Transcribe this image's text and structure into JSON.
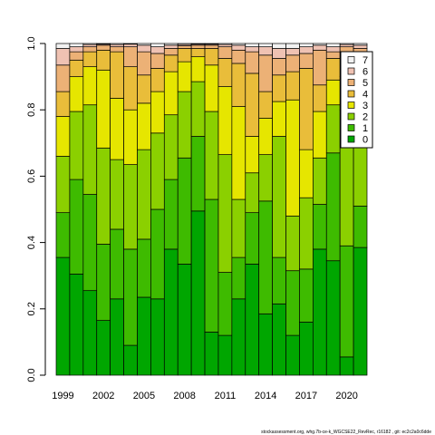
{
  "chart_data": {
    "type": "stacked_bar",
    "x": [
      1999,
      2000,
      2001,
      2002,
      2003,
      2004,
      2005,
      2006,
      2007,
      2008,
      2009,
      2010,
      2011,
      2012,
      2013,
      2014,
      2015,
      2016,
      2017,
      2018,
      2019,
      2020,
      2021
    ],
    "xticks": [
      1999,
      2002,
      2005,
      2008,
      2011,
      2014,
      2017,
      2020
    ],
    "ylim": [
      0,
      1
    ],
    "yticks": [
      {
        "value": 0,
        "label": "0.0"
      },
      0.2,
      0.4,
      0.6,
      0.8,
      {
        "value": 1,
        "label": "1.0"
      }
    ],
    "legend_position": "topright",
    "series": [
      {
        "name": "0",
        "color": "#00A600",
        "values": [
          0.355,
          0.305,
          0.255,
          0.165,
          0.23,
          0.09,
          0.235,
          0.23,
          0.38,
          0.335,
          0.495,
          0.13,
          0.12,
          0.23,
          0.335,
          0.185,
          0.215,
          0.12,
          0.16,
          0.38,
          0.345,
          0.055,
          0.385
        ]
      },
      {
        "name": "1",
        "color": "#3EBB00",
        "values": [
          0.135,
          0.285,
          0.29,
          0.23,
          0.21,
          0.29,
          0.175,
          0.27,
          0.21,
          0.32,
          0.225,
          0.4,
          0.19,
          0.125,
          0.155,
          0.34,
          0.14,
          0.195,
          0.16,
          0.135,
          0.325,
          0.335,
          0.125
        ]
      },
      {
        "name": "2",
        "color": "#8BD000",
        "values": [
          0.17,
          0.205,
          0.27,
          0.29,
          0.21,
          0.255,
          0.27,
          0.23,
          0.195,
          0.2,
          0.165,
          0.265,
          0.355,
          0.175,
          0.12,
          0.14,
          0.365,
          0.165,
          0.215,
          0.14,
          0.145,
          0.41,
          0.21
        ]
      },
      {
        "name": "3",
        "color": "#E6E600",
        "values": [
          0.12,
          0.105,
          0.115,
          0.235,
          0.185,
          0.165,
          0.14,
          0.125,
          0.13,
          0.09,
          0.075,
          0.14,
          0.205,
          0.28,
          0.11,
          0.11,
          0.105,
          0.35,
          0.145,
          0.14,
          0.075,
          0.1,
          0.16
        ]
      },
      {
        "name": "4",
        "color": "#E9BD3A",
        "values": [
          0.075,
          0.05,
          0.045,
          0.06,
          0.14,
          0.13,
          0.085,
          0.07,
          0.05,
          0.04,
          0.025,
          0.05,
          0.085,
          0.13,
          0.19,
          0.08,
          0.08,
          0.085,
          0.245,
          0.08,
          0.065,
          0.07,
          0.08
        ]
      },
      {
        "name": "5",
        "color": "#ECB176",
        "values": [
          0.08,
          0.025,
          0.015,
          0.015,
          0.015,
          0.06,
          0.07,
          0.045,
          0.02,
          0.008,
          0.01,
          0.01,
          0.035,
          0.04,
          0.065,
          0.11,
          0.05,
          0.05,
          0.045,
          0.105,
          0.02,
          0.02,
          0.025
        ]
      },
      {
        "name": "6",
        "color": "#EFC2B3",
        "values": [
          0.05,
          0.015,
          0.007,
          0.003,
          0.007,
          0.008,
          0.02,
          0.02,
          0.01,
          0.004,
          0.003,
          0.003,
          0.007,
          0.015,
          0.015,
          0.025,
          0.03,
          0.02,
          0.02,
          0.015,
          0.015,
          0.007,
          0.01
        ]
      },
      {
        "name": "7",
        "color": "#F2F2F2",
        "values": [
          0.015,
          0.01,
          0.003,
          0.002,
          0.003,
          0.002,
          0.005,
          0.01,
          0.005,
          0.003,
          0.002,
          0.002,
          0.003,
          0.005,
          0.01,
          0.01,
          0.015,
          0.015,
          0.01,
          0.005,
          0.01,
          0.003,
          0.005
        ]
      }
    ],
    "footer": "stockassessment.org, whg.7b-ce-k_WGCSE22_RevRec, r16182 , git: ec2c2a0c6dde"
  }
}
